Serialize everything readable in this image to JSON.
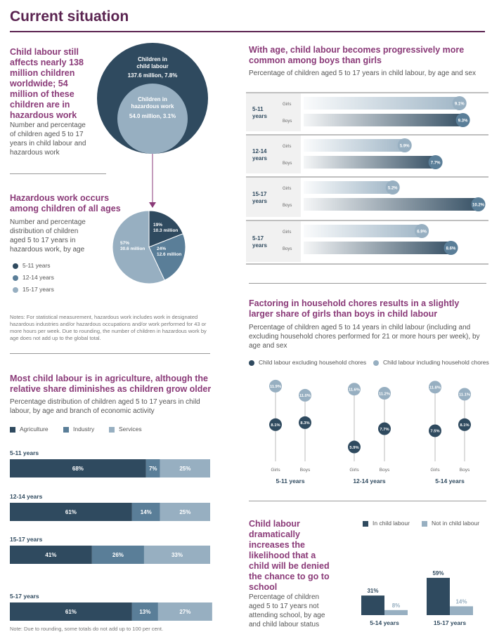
{
  "header": {
    "title": "Current situation"
  },
  "colors": {
    "dark": "#2f4a5f",
    "mid": "#5a7e98",
    "light": "#97afc1",
    "purple": "#8a3a78"
  },
  "sec1": {
    "title": "Child labour still affects nearly 138 million children worldwide; 54 million of these children are in hazardous work",
    "sub": "Number and percentage of children aged 5 to 17 years in child labour and hazardous work",
    "outer_l1": "Children in",
    "outer_l2": "child labour",
    "outer_l3": "137.6 million, 7.8%",
    "inner_l1": "Children in",
    "inner_l2": "hazardous work",
    "inner_l3": "54.0 million, 3.1%"
  },
  "sec2": {
    "title": "Hazardous work occurs among children of all ages",
    "sub": "Number and percentage distribution of children aged 5 to 17 years in hazardous work, by age",
    "legend": [
      "5-11 years",
      "12-14 years",
      "15-17 years"
    ],
    "notes": "Notes: For statistical measurement, hazardous work includes work in designated hazardous industries and/or hazardous occupations and/or work performed for 43 or more hours per week. Due to rounding, the number of children in hazardous work by age does not add up to the global total."
  },
  "sec3": {
    "title": "Most child labour is in agriculture, although the relative share diminishes as children grow older",
    "sub": "Percentage distribution of children aged 5 to 17 years in child labour, by age and branch of economic activity",
    "legend": [
      "Agriculture",
      "Industry",
      "Services"
    ],
    "note": "Note: Due to rounding, some totals do not add up to 100 per cent."
  },
  "sec4": {
    "title": "With age, child labour becomes progressively more common among boys than girls",
    "sub": "Percentage of children aged 5 to 17 years in child labour, by age and sex"
  },
  "sec5": {
    "title": "Factoring in household chores results in a slightly larger share of girls than boys in child labour",
    "sub": "Percentage of children aged 5 to 14 years in child labour (including and excluding household chores performed for 21 or more hours per week), by age and sex",
    "legend": [
      "Child labour excluding household chores",
      "Child labour including household chores"
    ]
  },
  "sec6": {
    "title": "Child labour dramatically increases the likelihood that a child will be denied the chance to go to school",
    "sub": "Percentage of children aged 5 to 17 years not attending school, by age and child labour status",
    "legend": [
      "In child labour",
      "Not in child labour"
    ]
  },
  "chart_data": [
    {
      "type": "pie",
      "title": "Hazardous work by age",
      "slices": [
        {
          "label": "5-11 years",
          "pct": 19,
          "text": "19%",
          "value": "10.3 million"
        },
        {
          "label": "12-14 years",
          "pct": 24,
          "text": "24%",
          "value": "12.6 million"
        },
        {
          "label": "15-17 years",
          "pct": 57,
          "text": "57%",
          "value": "30.6 million"
        }
      ]
    },
    {
      "type": "bar",
      "stacked": true,
      "title": "Child labour by branch of economic activity",
      "categories": [
        "5-11 years",
        "12-14 years",
        "15-17 years",
        "5-17 years"
      ],
      "series": [
        {
          "name": "Agriculture",
          "values": [
            68,
            61,
            41,
            61
          ],
          "labels": [
            "68%",
            "61%",
            "41%",
            "61%"
          ]
        },
        {
          "name": "Industry",
          "values": [
            7,
            14,
            26,
            13
          ],
          "labels": [
            "7%",
            "14%",
            "26%",
            "13%"
          ]
        },
        {
          "name": "Services",
          "values": [
            25,
            25,
            33,
            27
          ],
          "labels": [
            "25%",
            "25%",
            "33%",
            "27%"
          ]
        }
      ]
    },
    {
      "type": "bar",
      "orientation": "horizontal",
      "title": "Child labour by age and sex",
      "xlim": [
        0,
        11
      ],
      "groups": [
        {
          "label": "5-11 years",
          "rows": [
            {
              "sex": "Girls",
              "value": 9.1,
              "text": "9.1%"
            },
            {
              "sex": "Boys",
              "value": 9.3,
              "text": "9.3%"
            }
          ]
        },
        {
          "label": "12-14 years",
          "rows": [
            {
              "sex": "Girls",
              "value": 5.9,
              "text": "5.9%"
            },
            {
              "sex": "Boys",
              "value": 7.7,
              "text": "7.7%"
            }
          ]
        },
        {
          "label": "15-17 years",
          "rows": [
            {
              "sex": "Girls",
              "value": 5.2,
              "text": "5.2%"
            },
            {
              "sex": "Boys",
              "value": 10.2,
              "text": "10.2%"
            }
          ]
        },
        {
          "label": "5-17 years",
          "rows": [
            {
              "sex": "Girls",
              "value": 6.9,
              "text": "6.9%"
            },
            {
              "sex": "Boys",
              "value": 8.6,
              "text": "8.6%"
            }
          ]
        }
      ]
    },
    {
      "type": "scatter",
      "title": "Household chores",
      "ylim": [
        4,
        13
      ],
      "groups": [
        {
          "label": "5-11 years",
          "items": [
            {
              "sex": "Girls",
              "excl": 8.1,
              "excl_text": "8.1%",
              "incl": 11.9,
              "incl_text": "11.9%"
            },
            {
              "sex": "Boys",
              "excl": 8.3,
              "excl_text": "8.3%",
              "incl": 11.0,
              "incl_text": "11.0%"
            }
          ]
        },
        {
          "label": "12-14 years",
          "items": [
            {
              "sex": "Girls",
              "excl": 5.9,
              "excl_text": "5.9%",
              "incl": 11.6,
              "incl_text": "11.6%"
            },
            {
              "sex": "Boys",
              "excl": 7.7,
              "excl_text": "7.7%",
              "incl": 11.2,
              "incl_text": "11.2%"
            }
          ]
        },
        {
          "label": "5-14 years",
          "items": [
            {
              "sex": "Girls",
              "excl": 7.5,
              "excl_text": "7.5%",
              "incl": 11.8,
              "incl_text": "11.8%"
            },
            {
              "sex": "Boys",
              "excl": 8.1,
              "excl_text": "8.1%",
              "incl": 11.1,
              "incl_text": "11.1%"
            }
          ]
        }
      ]
    },
    {
      "type": "bar",
      "title": "Not attending school",
      "ylim": [
        0,
        65
      ],
      "categories": [
        "5-14 years",
        "15-17 years"
      ],
      "series": [
        {
          "name": "In child labour",
          "values": [
            31,
            59
          ],
          "labels": [
            "31%",
            "59%"
          ]
        },
        {
          "name": "Not in child labour",
          "values": [
            8,
            14
          ],
          "labels": [
            "8%",
            "14%"
          ]
        }
      ]
    }
  ]
}
